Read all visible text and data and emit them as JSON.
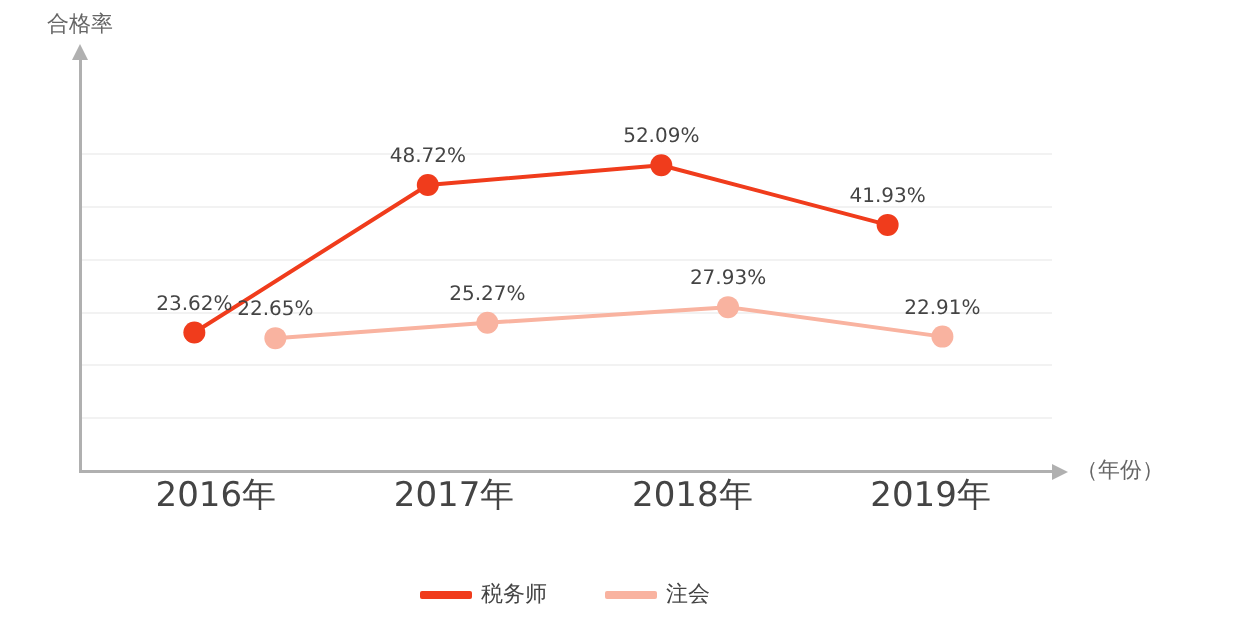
{
  "chart_data": {
    "type": "line",
    "ylabel": "合格率",
    "xlabel": "（年份）",
    "xlim": [
      2015.43,
      2019.51
    ],
    "xticks": [
      {
        "value": 2016,
        "label": "2016年"
      },
      {
        "value": 2017,
        "label": "2017年"
      },
      {
        "value": 2018,
        "label": "2018年"
      },
      {
        "value": 2019,
        "label": "2019年"
      }
    ],
    "ylim": [
      0,
      70
    ],
    "yticks": [
      {
        "value": 9,
        "label": null
      },
      {
        "value": 18,
        "label": null
      },
      {
        "value": 27,
        "label": null
      },
      {
        "value": 36,
        "label": null
      },
      {
        "value": 45,
        "label": null
      },
      {
        "value": 54,
        "label": null
      }
    ],
    "tick_labels": "x",
    "grid": "y",
    "legend": "bottom",
    "marker": "circle",
    "line_style": "solid",
    "series": [
      {
        "name": "税务师",
        "color": "#f03c1c",
        "x": [
          2015.91,
          2016.89,
          2017.87,
          2018.82
        ],
        "values": [
          23.62,
          48.72,
          52.09,
          41.93
        ],
        "value_labels": [
          "23.62%",
          "48.72%",
          "52.09%",
          "41.93%"
        ]
      },
      {
        "name": "注会",
        "color": "#f9b3a0",
        "x": [
          2016.25,
          2017.14,
          2018.15,
          2019.05
        ],
        "values": [
          22.65,
          25.27,
          27.93,
          22.91
        ],
        "value_labels": [
          "22.65%",
          "25.27%",
          "27.93%",
          "22.91%"
        ]
      }
    ]
  }
}
